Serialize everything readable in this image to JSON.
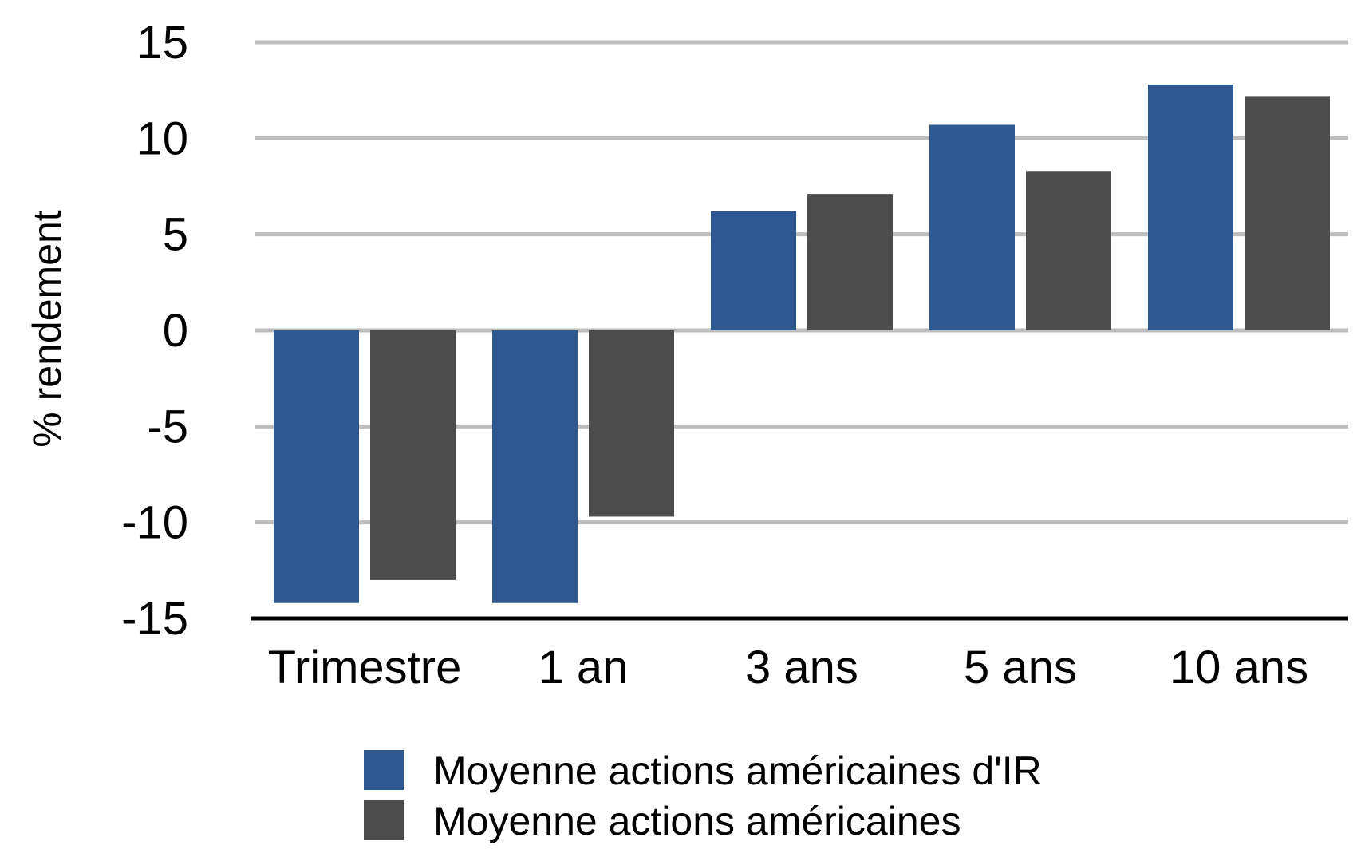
{
  "chart_data": {
    "type": "bar",
    "title": "",
    "xlabel": "",
    "ylabel": "% rendement",
    "ylim": [
      -15,
      15
    ],
    "yticks": [
      15,
      10,
      5,
      0,
      -5,
      -10,
      -15
    ],
    "grid": true,
    "legend_position": "bottom",
    "categories": [
      "Trimestre",
      "1 an",
      "3 ans",
      "5 ans",
      "10 ans"
    ],
    "series": [
      {
        "name": "Moyenne actions américaines d'IR",
        "color": "#2d5890",
        "values": [
          -14.2,
          -14.2,
          6.2,
          10.7,
          12.8
        ]
      },
      {
        "name": "Moyenne actions américaines",
        "color": "#4d4d4d",
        "values": [
          -13.0,
          -9.7,
          7.1,
          8.3,
          12.2
        ]
      }
    ]
  }
}
